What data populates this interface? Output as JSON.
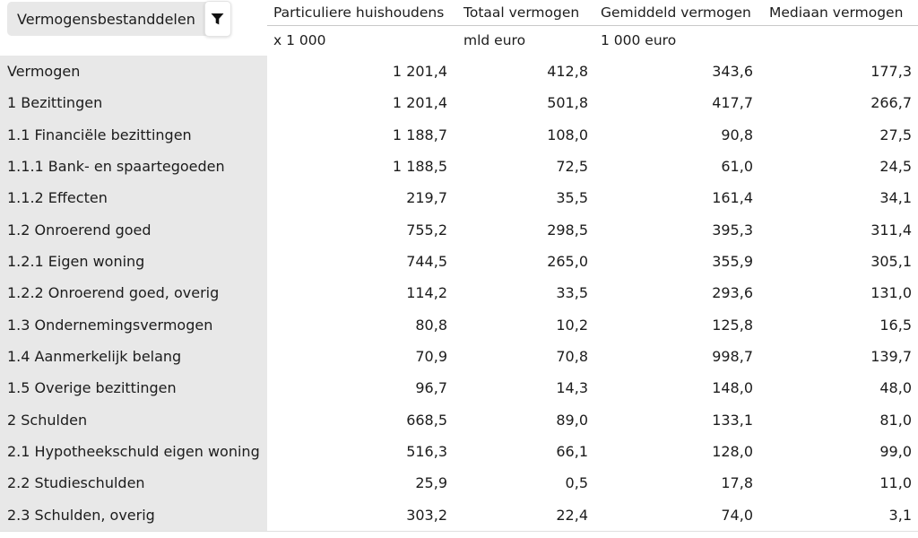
{
  "dimension_pill": {
    "label": "Vermogensbestanddelen",
    "icon": "filter-funnel-icon"
  },
  "columns": [
    {
      "label": "Particuliere huishoudens",
      "unit": "x 1 000"
    },
    {
      "label": "Totaal vermogen",
      "unit": "mld euro"
    },
    {
      "label": "Gemiddeld vermogen",
      "unit": "1 000 euro"
    },
    {
      "label": "Mediaan vermogen",
      "unit": ""
    }
  ],
  "rows": [
    {
      "label": "Vermogen",
      "values": [
        "1 201,4",
        "412,8",
        "343,6",
        "177,3"
      ]
    },
    {
      "label": "1 Bezittingen",
      "values": [
        "1 201,4",
        "501,8",
        "417,7",
        "266,7"
      ]
    },
    {
      "label": "1.1 Financiële bezittingen",
      "values": [
        "1 188,7",
        "108,0",
        "90,8",
        "27,5"
      ]
    },
    {
      "label": "1.1.1 Bank- en spaartegoeden",
      "values": [
        "1 188,5",
        "72,5",
        "61,0",
        "24,5"
      ]
    },
    {
      "label": "1.1.2 Effecten",
      "values": [
        "219,7",
        "35,5",
        "161,4",
        "34,1"
      ]
    },
    {
      "label": "1.2 Onroerend goed",
      "values": [
        "755,2",
        "298,5",
        "395,3",
        "311,4"
      ]
    },
    {
      "label": "1.2.1 Eigen woning",
      "values": [
        "744,5",
        "265,0",
        "355,9",
        "305,1"
      ]
    },
    {
      "label": "1.2.2 Onroerend goed, overig",
      "values": [
        "114,2",
        "33,5",
        "293,6",
        "131,0"
      ]
    },
    {
      "label": "1.3 Ondernemingsvermogen",
      "values": [
        "80,8",
        "10,2",
        "125,8",
        "16,5"
      ]
    },
    {
      "label": "1.4 Aanmerkelijk belang",
      "values": [
        "70,9",
        "70,8",
        "998,7",
        "139,7"
      ]
    },
    {
      "label": "1.5 Overige bezittingen",
      "values": [
        "96,7",
        "14,3",
        "148,0",
        "48,0"
      ]
    },
    {
      "label": "2 Schulden",
      "values": [
        "668,5",
        "89,0",
        "133,1",
        "81,0"
      ]
    },
    {
      "label": "2.1 Hypotheekschuld eigen woning",
      "values": [
        "516,3",
        "66,1",
        "128,0",
        "99,0"
      ]
    },
    {
      "label": "2.2 Studieschulden",
      "values": [
        "25,9",
        "0,5",
        "17,8",
        "11,0"
      ]
    },
    {
      "label": "2.3 Schulden, overig",
      "values": [
        "303,2",
        "22,4",
        "74,0",
        "3,1"
      ]
    }
  ],
  "colors": {
    "label_column_bg": "#e8e8e8",
    "pill_bg": "#e8e8e8",
    "text": "#1c1c1c",
    "header_rule": "#c9c9c9",
    "table_bottom_rule": "#e0e0e0",
    "filter_icon": "#111111"
  }
}
